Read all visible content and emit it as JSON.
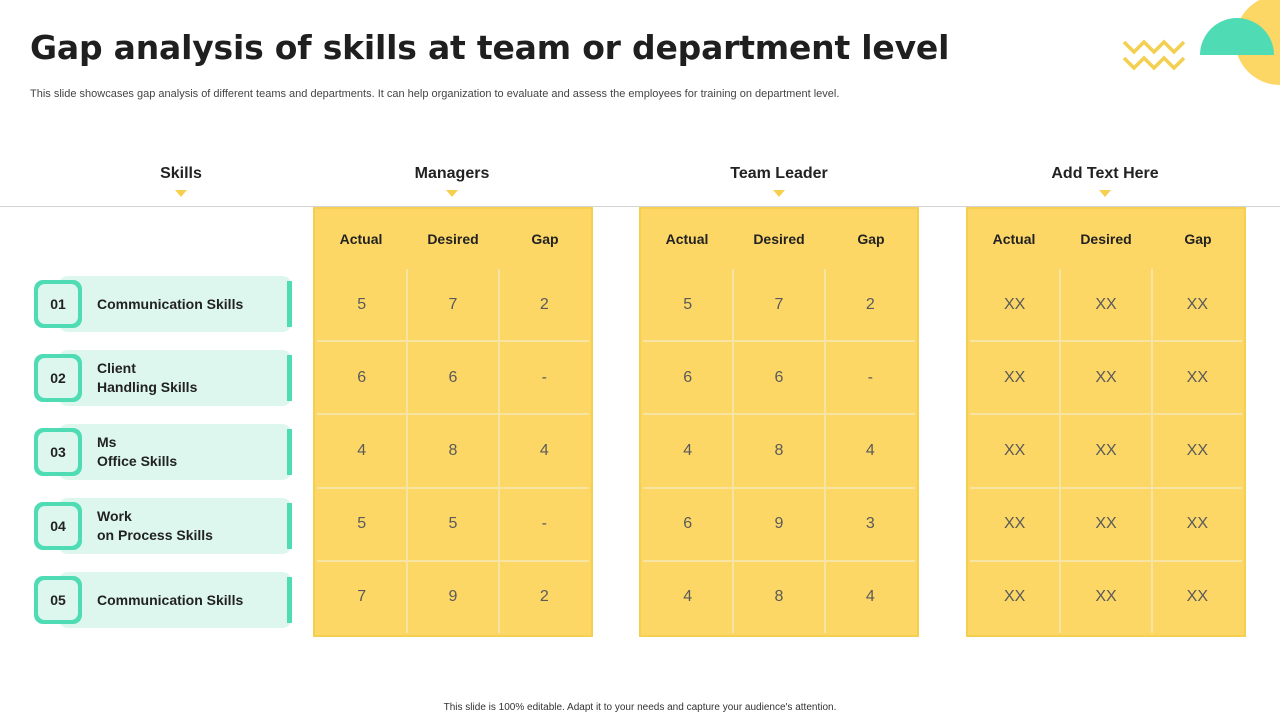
{
  "title": "Gap analysis of skills at team or department level",
  "subtitle": "This slide showcases gap analysis of different teams and departments. It can help organization to evaluate and assess the employees for training on department level.",
  "columns": {
    "skills": "Skills",
    "managers": "Managers",
    "team_leader": "Team Leader",
    "add_text": "Add Text Here"
  },
  "subheaders": [
    "Actual",
    "Desired",
    "Gap"
  ],
  "skills": [
    {
      "num": "01",
      "label": "Communication Skills"
    },
    {
      "num": "02",
      "label": "Client\nHandling Skills"
    },
    {
      "num": "03",
      "label": "Ms\nOffice Skills"
    },
    {
      "num": "04",
      "label": "Work\non Process Skills"
    },
    {
      "num": "05",
      "label": "Communication Skills"
    }
  ],
  "managers": [
    [
      "5",
      "7",
      "2"
    ],
    [
      "6",
      "6",
      "-"
    ],
    [
      "4",
      "8",
      "4"
    ],
    [
      "5",
      "5",
      "-"
    ],
    [
      "7",
      "9",
      "2"
    ]
  ],
  "team_leader": [
    [
      "5",
      "7",
      "2"
    ],
    [
      "6",
      "6",
      "-"
    ],
    [
      "4",
      "8",
      "4"
    ],
    [
      "6",
      "9",
      "3"
    ],
    [
      "4",
      "8",
      "4"
    ]
  ],
  "add_text": [
    [
      "XX",
      "XX",
      "XX"
    ],
    [
      "XX",
      "XX",
      "XX"
    ],
    [
      "XX",
      "XX",
      "XX"
    ],
    [
      "XX",
      "XX",
      "XX"
    ],
    [
      "XX",
      "XX",
      "XX"
    ]
  ],
  "colors": {
    "accent_yellow": "#fcd766",
    "accent_mint": "#4fdcb4",
    "mint_light": "#ddf7ef"
  },
  "footer": "This slide is 100% editable. Adapt it to your needs and capture your audience's attention."
}
